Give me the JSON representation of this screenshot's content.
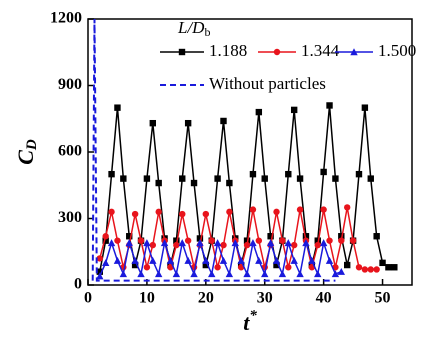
{
  "chart_data": {
    "type": "line",
    "y_label": "C",
    "y_label_sub": "D",
    "x_label": "t",
    "x_label_sup": "*",
    "legend_title": "L/D",
    "legend_title_sub": "b",
    "xlim": [
      0,
      55
    ],
    "ylim": [
      0,
      1200
    ],
    "xticks": [
      0,
      10,
      20,
      30,
      40,
      50
    ],
    "yticks": [
      0,
      300,
      600,
      900,
      1200
    ],
    "series": [
      {
        "name": "1.188",
        "color": "#000000",
        "marker": "square",
        "linestyle": "solid",
        "x": [
          2,
          3,
          4,
          5,
          6,
          7,
          8,
          9,
          10,
          11,
          12,
          13,
          14,
          15,
          16,
          17,
          18,
          19,
          20,
          21,
          22,
          23,
          24,
          25,
          26,
          27,
          28,
          29,
          30,
          31,
          32,
          33,
          34,
          35,
          36,
          37,
          38,
          39,
          40,
          41,
          42,
          43,
          44,
          45,
          46,
          47,
          48,
          49,
          50,
          51,
          52
        ],
        "values": [
          60,
          200,
          500,
          800,
          480,
          220,
          90,
          200,
          480,
          730,
          460,
          210,
          90,
          200,
          480,
          730,
          460,
          210,
          90,
          200,
          480,
          740,
          460,
          210,
          90,
          200,
          500,
          780,
          480,
          220,
          90,
          200,
          500,
          790,
          480,
          220,
          90,
          200,
          510,
          810,
          480,
          220,
          90,
          200,
          500,
          800,
          480,
          220,
          100,
          80,
          80
        ]
      },
      {
        "name": "1.344",
        "color": "#e8141c",
        "marker": "circle",
        "linestyle": "solid",
        "x": [
          2,
          3,
          4,
          5,
          6,
          7,
          8,
          9,
          10,
          11,
          12,
          13,
          14,
          15,
          16,
          17,
          18,
          19,
          20,
          21,
          22,
          23,
          24,
          25,
          26,
          27,
          28,
          29,
          30,
          31,
          32,
          33,
          34,
          35,
          36,
          37,
          38,
          39,
          40,
          41,
          42,
          43,
          44,
          45,
          46,
          47,
          48,
          49
        ],
        "values": [
          120,
          220,
          330,
          200,
          80,
          180,
          320,
          200,
          80,
          180,
          330,
          200,
          80,
          180,
          320,
          200,
          80,
          180,
          320,
          200,
          80,
          180,
          330,
          200,
          80,
          180,
          340,
          200,
          80,
          180,
          330,
          200,
          80,
          180,
          340,
          200,
          80,
          180,
          340,
          200,
          80,
          200,
          350,
          200,
          80,
          70,
          70,
          70
        ]
      },
      {
        "name": "1.500",
        "color": "#1a1adc",
        "marker": "triangle",
        "linestyle": "solid",
        "x": [
          2,
          3,
          4,
          5,
          6,
          7,
          8,
          9,
          10,
          11,
          12,
          13,
          14,
          15,
          16,
          17,
          18,
          19,
          20,
          21,
          22,
          23,
          24,
          25,
          26,
          27,
          28,
          29,
          30,
          31,
          32,
          33,
          34,
          35,
          36,
          37,
          38,
          39,
          40,
          41,
          42,
          43
        ],
        "values": [
          40,
          100,
          190,
          110,
          50,
          190,
          110,
          50,
          190,
          110,
          50,
          190,
          110,
          50,
          190,
          110,
          50,
          190,
          110,
          50,
          190,
          110,
          50,
          190,
          110,
          50,
          190,
          110,
          50,
          190,
          110,
          50,
          190,
          110,
          50,
          190,
          110,
          50,
          190,
          110,
          50,
          60
        ]
      },
      {
        "name": "Without particles",
        "color": "#1a1adc",
        "marker": "none",
        "linestyle": "dashed",
        "x": [
          0.8,
          1.1,
          1.5,
          42
        ],
        "values": [
          20,
          1200,
          20,
          20
        ]
      }
    ]
  }
}
